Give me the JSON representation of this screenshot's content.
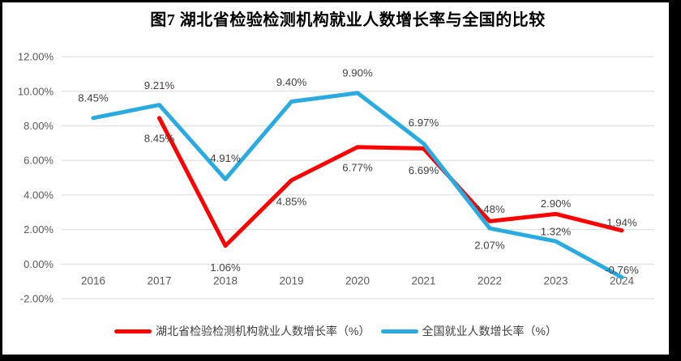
{
  "chart_data": {
    "type": "line",
    "title": "图7 湖北省检验检测机构就业人数增长率与全国的比较",
    "categories": [
      "2016",
      "2017",
      "2018",
      "2019",
      "2020",
      "2021",
      "2022",
      "2023",
      "2024"
    ],
    "series": [
      {
        "id": "hubei",
        "name": "湖北省检验检测机构就业人数增长率（%）",
        "color": "#FF0000",
        "values": [
          null,
          8.45,
          1.06,
          4.85,
          6.77,
          6.69,
          2.48,
          2.9,
          1.94
        ],
        "labels": [
          "",
          "8.45%",
          "1.06%",
          "4.85%",
          "6.77%",
          "6.69%",
          "2.48%",
          "2.90%",
          "1.94%"
        ]
      },
      {
        "id": "national",
        "name": "全国就业人数增长率（%）",
        "color": "#29ABE2",
        "values": [
          8.45,
          9.21,
          4.91,
          9.4,
          9.9,
          6.97,
          2.07,
          1.32,
          -0.76
        ],
        "labels": [
          "8.45%",
          "9.21%",
          "4.91%",
          "9.40%",
          "9.90%",
          "6.97%",
          "2.07%",
          "1.32%",
          "-0.76%"
        ]
      }
    ],
    "y_axis": {
      "min": -2,
      "max": 12,
      "step": 2,
      "tick_labels": [
        "-2.00%",
        "0.00%",
        "2.00%",
        "4.00%",
        "6.00%",
        "8.00%",
        "10.00%",
        "12.00%"
      ]
    },
    "grid": true,
    "legend_position": "bottom",
    "colors": {
      "grid": "#D9D9D9",
      "axis_text": "#595959",
      "data_label_text": "#404040",
      "title_text": "#000000",
      "background": "#FFFFFF",
      "frame_border": "#000000"
    }
  }
}
